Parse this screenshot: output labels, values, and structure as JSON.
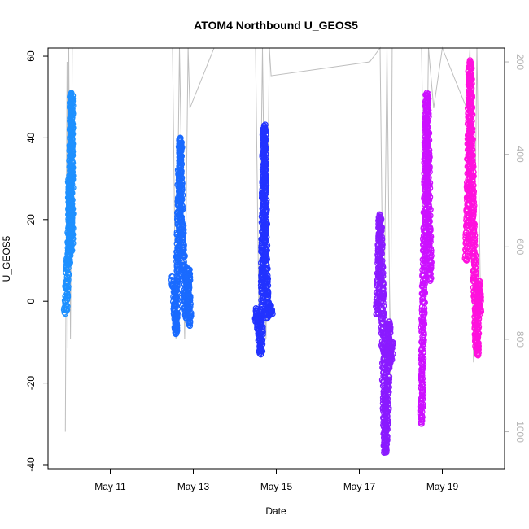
{
  "chart_data": {
    "type": "scatter",
    "title": "ATOM4 Northbound U_GEOS5",
    "xlabel": "Date",
    "ylabel": "U_GEOS5",
    "xlim": [
      "2016-05-09T12:00",
      "2016-05-20T12:00"
    ],
    "ylim": [
      -41,
      62
    ],
    "y2lim": [
      1080,
      170
    ],
    "x_ticks": [
      {
        "date": "2016-05-11T00:00",
        "label": "May 11"
      },
      {
        "date": "2016-05-13T00:00",
        "label": "May 13"
      },
      {
        "date": "2016-05-15T00:00",
        "label": "May 15"
      },
      {
        "date": "2016-05-17T00:00",
        "label": "May 17"
      },
      {
        "date": "2016-05-19T00:00",
        "label": "May 19"
      }
    ],
    "y_ticks": [
      {
        "value": -40,
        "label": "-40"
      },
      {
        "value": -20,
        "label": "-20"
      },
      {
        "value": 0,
        "label": "0"
      },
      {
        "value": 20,
        "label": "20"
      },
      {
        "value": 40,
        "label": "40"
      },
      {
        "value": 60,
        "label": "60"
      }
    ],
    "y2_ticks": [
      {
        "value": 200,
        "label": "200"
      },
      {
        "value": 400,
        "label": "400"
      },
      {
        "value": 600,
        "label": "600"
      },
      {
        "value": 800,
        "label": "800"
      },
      {
        "value": 1000,
        "label": "1000"
      }
    ],
    "grid": false,
    "flights": [
      {
        "color": "#1e90ff",
        "points": [
          {
            "x": "2016-05-09T22:00",
            "y": -3
          },
          {
            "x": "2016-05-09T22:30",
            "y": 0
          },
          {
            "x": "2016-05-09T23:00",
            "y": 6
          },
          {
            "x": "2016-05-09T23:30",
            "y": 11
          },
          {
            "x": "2016-05-10T00:00",
            "y": 9
          },
          {
            "x": "2016-05-10T00:15",
            "y": 18
          },
          {
            "x": "2016-05-10T00:30",
            "y": 30
          },
          {
            "x": "2016-05-10T00:45",
            "y": 22
          },
          {
            "x": "2016-05-10T01:00",
            "y": 12
          },
          {
            "x": "2016-05-10T01:15",
            "y": 42
          },
          {
            "x": "2016-05-10T01:30",
            "y": 51
          },
          {
            "x": "2016-05-10T01:40",
            "y": 14
          }
        ]
      },
      {
        "color": "#1a6bff",
        "points": [
          {
            "x": "2016-05-12T12:00",
            "y": 6
          },
          {
            "x": "2016-05-12T13:00",
            "y": 2
          },
          {
            "x": "2016-05-12T14:00",
            "y": -8
          },
          {
            "x": "2016-05-12T15:00",
            "y": 10
          },
          {
            "x": "2016-05-12T16:00",
            "y": 30
          },
          {
            "x": "2016-05-12T16:30",
            "y": 40
          },
          {
            "x": "2016-05-12T17:00",
            "y": 25
          },
          {
            "x": "2016-05-12T18:00",
            "y": 12
          },
          {
            "x": "2016-05-12T19:00",
            "y": 6
          },
          {
            "x": "2016-05-12T20:00",
            "y": -4
          },
          {
            "x": "2016-05-12T21:00",
            "y": 8
          },
          {
            "x": "2016-05-12T22:00",
            "y": -6
          }
        ]
      },
      {
        "color": "#2233ff",
        "points": [
          {
            "x": "2016-05-14T12:00",
            "y": -5
          },
          {
            "x": "2016-05-14T13:00",
            "y": -2
          },
          {
            "x": "2016-05-14T14:00",
            "y": -8
          },
          {
            "x": "2016-05-14T15:00",
            "y": -13
          },
          {
            "x": "2016-05-14T16:00",
            "y": 3
          },
          {
            "x": "2016-05-14T16:30",
            "y": 25
          },
          {
            "x": "2016-05-14T17:00",
            "y": 43
          },
          {
            "x": "2016-05-14T18:00",
            "y": 10
          },
          {
            "x": "2016-05-14T19:00",
            "y": -4
          },
          {
            "x": "2016-05-14T20:00",
            "y": -1
          },
          {
            "x": "2016-05-14T21:00",
            "y": -3
          }
        ]
      },
      {
        "color": "#8a1bff",
        "points": [
          {
            "x": "2016-05-17T10:00",
            "y": -3
          },
          {
            "x": "2016-05-17T11:00",
            "y": 2
          },
          {
            "x": "2016-05-17T12:00",
            "y": 21
          },
          {
            "x": "2016-05-17T13:00",
            "y": 5
          },
          {
            "x": "2016-05-17T14:00",
            "y": -15
          },
          {
            "x": "2016-05-17T15:00",
            "y": -37
          },
          {
            "x": "2016-05-17T16:00",
            "y": -28
          },
          {
            "x": "2016-05-17T17:00",
            "y": -5
          },
          {
            "x": "2016-05-17T18:00",
            "y": -15
          },
          {
            "x": "2016-05-17T19:00",
            "y": -10
          }
        ]
      },
      {
        "color": "#cc11ff",
        "points": [
          {
            "x": "2016-05-18T12:00",
            "y": -30
          },
          {
            "x": "2016-05-18T12:30",
            "y": -10
          },
          {
            "x": "2016-05-18T13:00",
            "y": 0
          },
          {
            "x": "2016-05-18T14:00",
            "y": 20
          },
          {
            "x": "2016-05-18T15:00",
            "y": 51
          },
          {
            "x": "2016-05-18T16:00",
            "y": 30
          },
          {
            "x": "2016-05-18T17:00",
            "y": 5
          }
        ]
      },
      {
        "color": "#ff11dd",
        "points": [
          {
            "x": "2016-05-19T14:00",
            "y": 10
          },
          {
            "x": "2016-05-19T15:00",
            "y": 25
          },
          {
            "x": "2016-05-19T16:00",
            "y": 59
          },
          {
            "x": "2016-05-19T17:00",
            "y": 35
          },
          {
            "x": "2016-05-19T18:00",
            "y": 15
          },
          {
            "x": "2016-05-19T19:00",
            "y": 3
          },
          {
            "x": "2016-05-19T20:00",
            "y": -13
          },
          {
            "x": "2016-05-19T21:00",
            "y": 5
          },
          {
            "x": "2016-05-19T22:00",
            "y": -3
          }
        ]
      }
    ],
    "pressure_track": {
      "color": "#bebebe",
      "points": [
        {
          "x": "2016-05-09T22:00",
          "y": 1000
        },
        {
          "x": "2016-05-09T23:00",
          "y": 200
        },
        {
          "x": "2016-05-09T23:30",
          "y": 820
        },
        {
          "x": "2016-05-10T00:00",
          "y": 170
        },
        {
          "x": "2016-05-10T01:00",
          "y": 800
        },
        {
          "x": "2016-05-10T02:00",
          "y": 170
        },
        {
          "x": "2016-05-12T12:00",
          "y": 170
        },
        {
          "x": "2016-05-12T14:00",
          "y": 800
        },
        {
          "x": "2016-05-12T16:00",
          "y": 170
        },
        {
          "x": "2016-05-12T19:00",
          "y": 800
        },
        {
          "x": "2016-05-12T21:00",
          "y": 170
        },
        {
          "x": "2016-05-12T22:00",
          "y": 300
        },
        {
          "x": "2016-05-13T12:00",
          "y": 170
        },
        {
          "x": "2016-05-14T12:00",
          "y": 170
        },
        {
          "x": "2016-05-14T14:00",
          "y": 780
        },
        {
          "x": "2016-05-14T16:00",
          "y": 170
        },
        {
          "x": "2016-05-14T18:00",
          "y": 800
        },
        {
          "x": "2016-05-14T20:00",
          "y": 170
        },
        {
          "x": "2016-05-14T21:00",
          "y": 230
        },
        {
          "x": "2016-05-17T06:00",
          "y": 200
        },
        {
          "x": "2016-05-17T12:00",
          "y": 170
        },
        {
          "x": "2016-05-17T14:00",
          "y": 850
        },
        {
          "x": "2016-05-17T16:00",
          "y": 170
        },
        {
          "x": "2016-05-17T18:00",
          "y": 900
        },
        {
          "x": "2016-05-17T19:00",
          "y": 170
        },
        {
          "x": "2016-05-18T12:00",
          "y": 170
        },
        {
          "x": "2016-05-18T14:00",
          "y": 700
        },
        {
          "x": "2016-05-18T16:00",
          "y": 170
        },
        {
          "x": "2016-05-18T19:00",
          "y": 300
        },
        {
          "x": "2016-05-19T00:00",
          "y": 170
        },
        {
          "x": "2016-05-19T14:00",
          "y": 300
        },
        {
          "x": "2016-05-19T16:00",
          "y": 170
        },
        {
          "x": "2016-05-19T18:00",
          "y": 850
        },
        {
          "x": "2016-05-19T20:00",
          "y": 170
        },
        {
          "x": "2016-05-19T22:00",
          "y": 700
        }
      ]
    }
  }
}
